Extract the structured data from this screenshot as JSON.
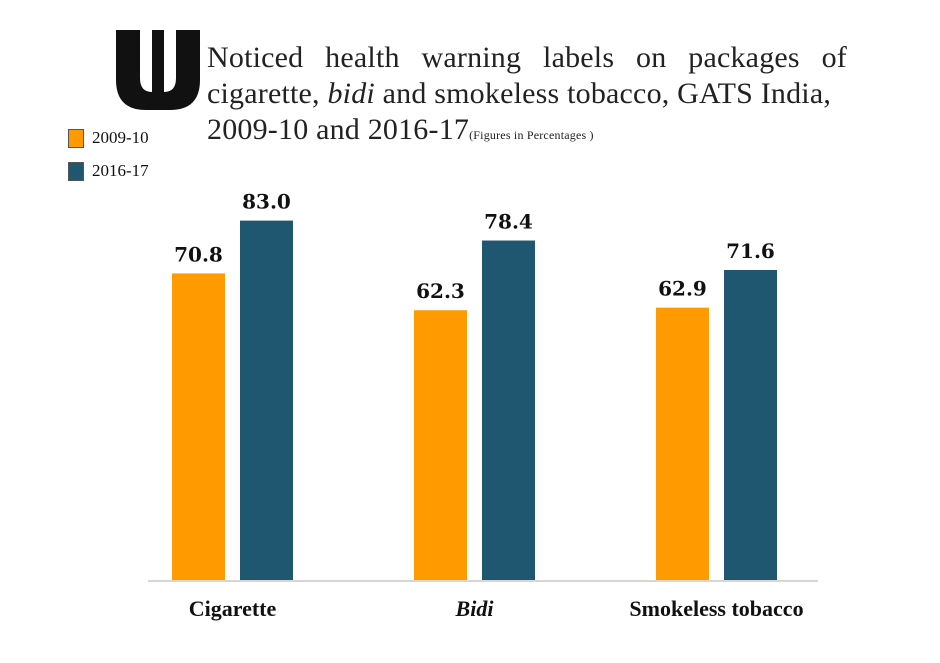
{
  "logo_text": "W",
  "title": {
    "line1": "Noticed health warning labels on packages of",
    "line2_a": "cigarette, ",
    "line2_b": "bidi",
    "line2_c": " and smokeless tobacco, GATS India,",
    "line3": "2009-10 and 2016-17",
    "note": "(Figures in Percentages )"
  },
  "chart_data": {
    "type": "bar",
    "title": "Noticed health warning labels on packages of cigarette, bidi and smokeless tobacco, GATS India, 2009-10 and 2016-17 (Figures in Percentages)",
    "categories": [
      "Cigarette",
      "Bidi",
      "Smokeless tobacco"
    ],
    "categories_italic": [
      false,
      true,
      false
    ],
    "series": [
      {
        "name": "2009-10",
        "color": "#FF9A00",
        "values": [
          70.8,
          62.3,
          62.9
        ]
      },
      {
        "name": "2016-17",
        "color": "#1F5670",
        "values": [
          83.0,
          78.4,
          71.6
        ]
      }
    ],
    "value_labels": [
      [
        "70.8",
        "62.3",
        "62.9"
      ],
      [
        "83.0",
        "78.4",
        "71.6"
      ]
    ],
    "xlabel": "",
    "ylabel": "",
    "ylim": [
      0,
      100
    ],
    "grid": false,
    "legend_position": "top-left"
  }
}
